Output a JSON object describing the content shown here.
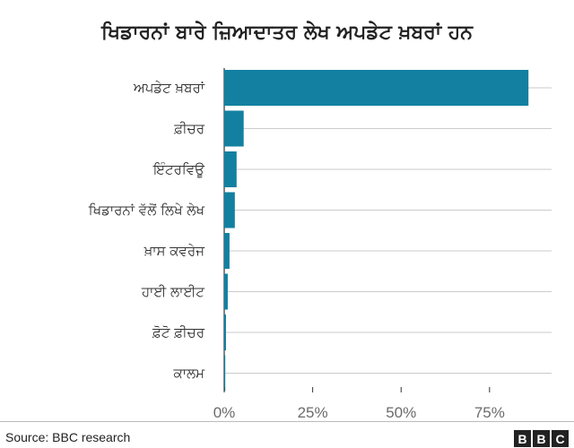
{
  "title": "ਖਿਡਾਰਨਾਂ ਬਾਰੇ ਜ਼ਿਆਦਾਤਰ ਲੇਖ ਅਪਡੇਟ ਖ਼ਬਰਾਂ ਹਨ",
  "source": "Source: BBC research",
  "logo": {
    "letters": [
      "B",
      "B",
      "C"
    ]
  },
  "colors": {
    "bar": "#1380a1",
    "grid": "#cbcbcb",
    "axis": "#333333"
  },
  "chart_data": {
    "type": "bar",
    "orientation": "horizontal",
    "title": "ਖਿਡਾਰਨਾਂ ਬਾਰੇ ਜ਼ਿਆਦਾਤਰ ਲੇਖ ਅਪਡੇਟ ਖ਼ਬਰਾਂ ਹਨ",
    "categories": [
      "ਅਪਡੇਟ ਖ਼ਬਰਾਂ",
      "ਫ਼ੀਚਰ",
      "ਇੰਟਰਵਿਊ",
      "ਖਿਡਾਰਨਾਂ ਵੱਲੋਂ ਲਿਖੇ ਲੇਖ",
      "ਖ਼ਾਸ ਕਵਰੇਜ",
      "ਹਾਈ ਲਾਈਟ",
      "ਫ਼ੋਟੋ ਫ਼ੀਚਰ",
      "ਕਾਲਮ"
    ],
    "values": [
      86,
      5.5,
      3.5,
      3,
      1.5,
      1,
      0.5,
      0.3
    ],
    "xlim": [
      0,
      90
    ],
    "x_ticks": [
      0,
      25,
      50,
      75
    ],
    "x_tick_labels": [
      "0%",
      "25%",
      "50%",
      "75%"
    ],
    "xlabel": "",
    "ylabel": "",
    "grid": true,
    "legend": "none"
  }
}
